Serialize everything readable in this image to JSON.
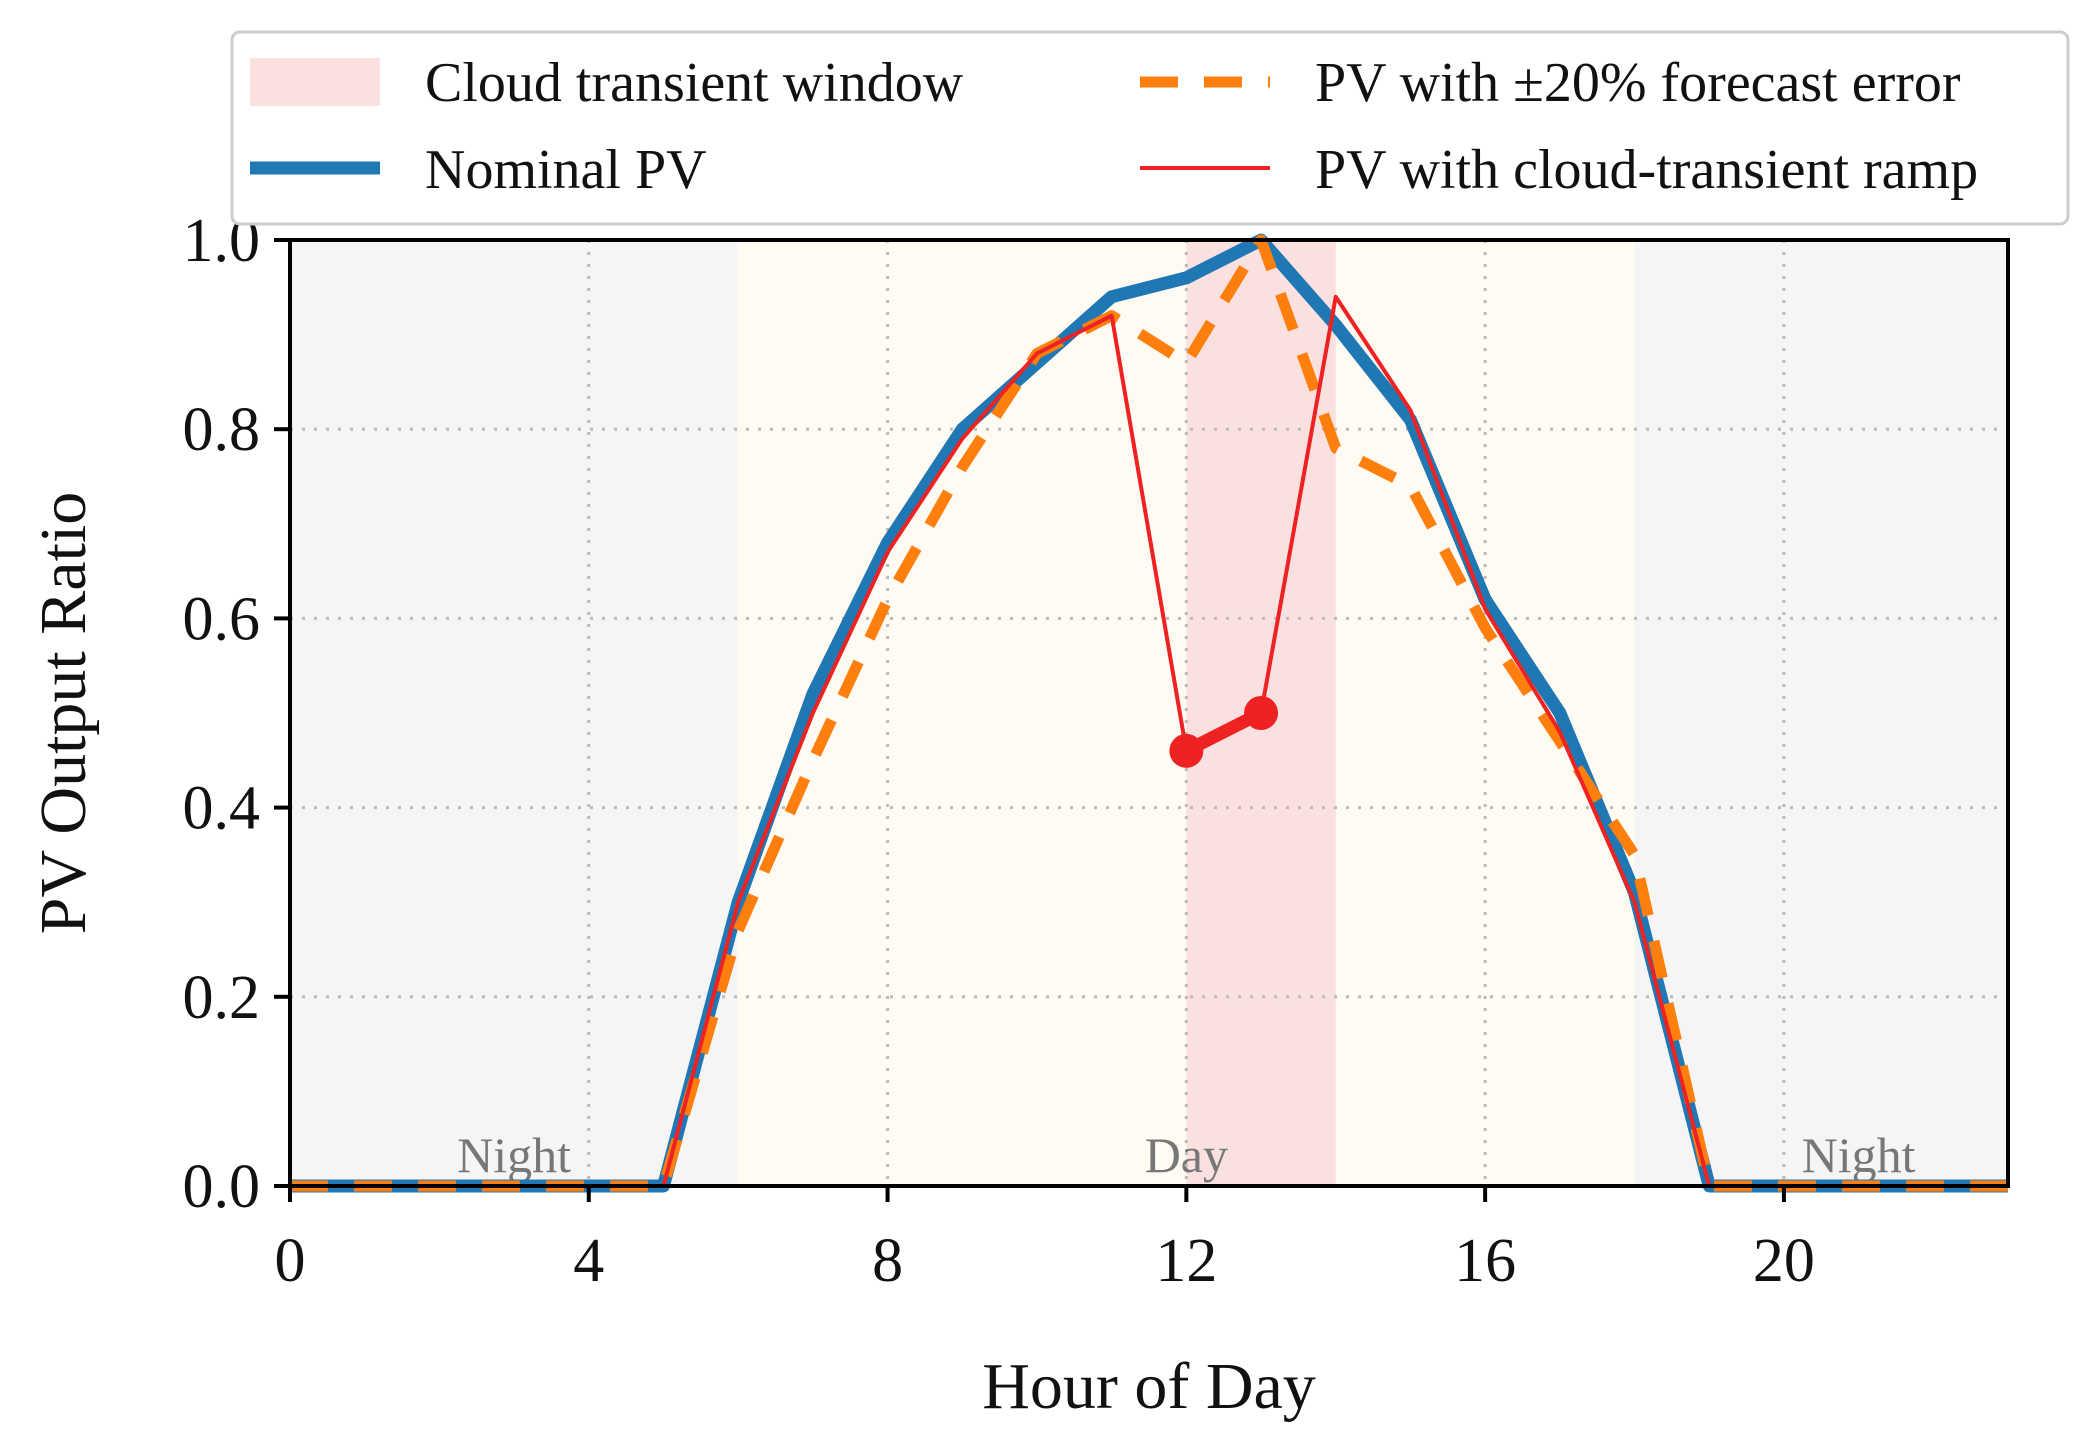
{
  "chart_data": {
    "type": "line",
    "title": "",
    "xlabel": "Hour of Day",
    "ylabel": "PV Output Ratio",
    "xlim": [
      0,
      23
    ],
    "ylim": [
      0,
      1.0
    ],
    "x_ticks": [
      0,
      4,
      8,
      12,
      16,
      20
    ],
    "y_ticks": [
      0.0,
      0.2,
      0.4,
      0.6,
      0.8,
      1.0
    ],
    "x_tick_labels": [
      "0",
      "4",
      "8",
      "12",
      "16",
      "20"
    ],
    "y_tick_labels": [
      "0.0",
      "0.2",
      "0.4",
      "0.6",
      "0.8",
      "1.0"
    ],
    "grid": true,
    "legend_position": "top",
    "shaded_regions": [
      {
        "name": "Night",
        "x_start": 0,
        "x_end": 6,
        "color": "#f5f5f5"
      },
      {
        "name": "Day",
        "x_start": 6,
        "x_end": 18,
        "color": "#fffbf2"
      },
      {
        "name": "Night",
        "x_start": 18,
        "x_end": 23,
        "color": "#f5f5f5"
      },
      {
        "name": "Cloud transient window",
        "x_start": 12,
        "x_end": 14,
        "color": "#fbe0e0"
      }
    ],
    "region_labels": [
      {
        "text": "Night",
        "x": 3
      },
      {
        "text": "Day",
        "x": 12
      },
      {
        "text": "Night",
        "x": 21
      }
    ],
    "x": [
      0,
      1,
      2,
      3,
      4,
      5,
      6,
      7,
      8,
      9,
      10,
      11,
      12,
      13,
      14,
      15,
      16,
      17,
      18,
      19,
      20,
      21,
      22,
      23
    ],
    "series": [
      {
        "name": "Nominal PV",
        "color": "#1f77b4",
        "style": "solid",
        "width": "thick",
        "values": [
          0,
          0,
          0,
          0,
          0,
          0,
          0.3,
          0.52,
          0.68,
          0.8,
          0.87,
          0.94,
          0.96,
          1.0,
          0.91,
          0.81,
          0.62,
          0.5,
          0.31,
          0,
          0,
          0,
          0,
          0
        ]
      },
      {
        "name": "PV with ±20% forecast error",
        "color": "#ff7f0e",
        "style": "dashed",
        "width": "thick",
        "values": [
          0,
          0,
          0,
          0,
          0,
          0,
          0.27,
          0.45,
          0.62,
          0.76,
          0.88,
          0.92,
          0.87,
          1.0,
          0.78,
          0.74,
          0.59,
          0.47,
          0.35,
          0,
          0,
          0,
          0,
          0
        ]
      },
      {
        "name": "PV with cloud-transient ramp",
        "color": "#ee2222",
        "style": "solid",
        "width": "thin",
        "values": [
          0,
          0,
          0,
          0,
          0,
          0,
          0.3,
          0.5,
          0.67,
          0.79,
          0.88,
          0.92,
          0.46,
          0.5,
          0.94,
          0.82,
          0.61,
          0.48,
          0.3,
          0,
          0,
          0,
          0,
          0
        ],
        "markers": [
          12,
          13
        ]
      }
    ]
  }
}
